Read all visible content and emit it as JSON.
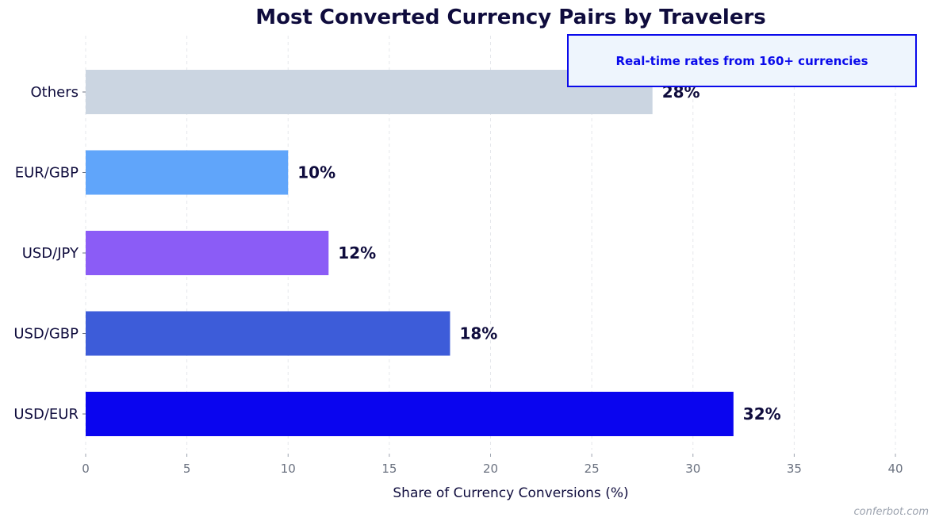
{
  "chart_data": {
    "type": "bar",
    "orientation": "horizontal",
    "title": "Most Converted Currency Pairs by Travelers",
    "xlabel": "Share of Currency Conversions (%)",
    "ylabel": "",
    "categories": [
      "USD/EUR",
      "USD/GBP",
      "USD/JPY",
      "EUR/GBP",
      "Others"
    ],
    "values": [
      32,
      18,
      12,
      10,
      28
    ],
    "data_labels": [
      "32%",
      "18%",
      "12%",
      "10%",
      "28%"
    ],
    "colors": [
      "#0a05ef",
      "#3d5cd9",
      "#8b5cf6",
      "#60a5fa",
      "#cbd5e1"
    ],
    "xlim": [
      0,
      40
    ],
    "x_ticks": [
      0,
      5,
      10,
      15,
      20,
      25,
      30,
      35,
      40
    ],
    "grid": "vertical dashed",
    "legend": "none",
    "annotation": "Real-time rates from 160+ currencies"
  },
  "watermark": "conferbot.com",
  "colors": {
    "title": "#0f0c3d",
    "annotation_accent": "#0a0aeb",
    "annotation_background": "#eef5fd",
    "tick_text": "#6b7280",
    "grid": "#e5e7eb"
  }
}
